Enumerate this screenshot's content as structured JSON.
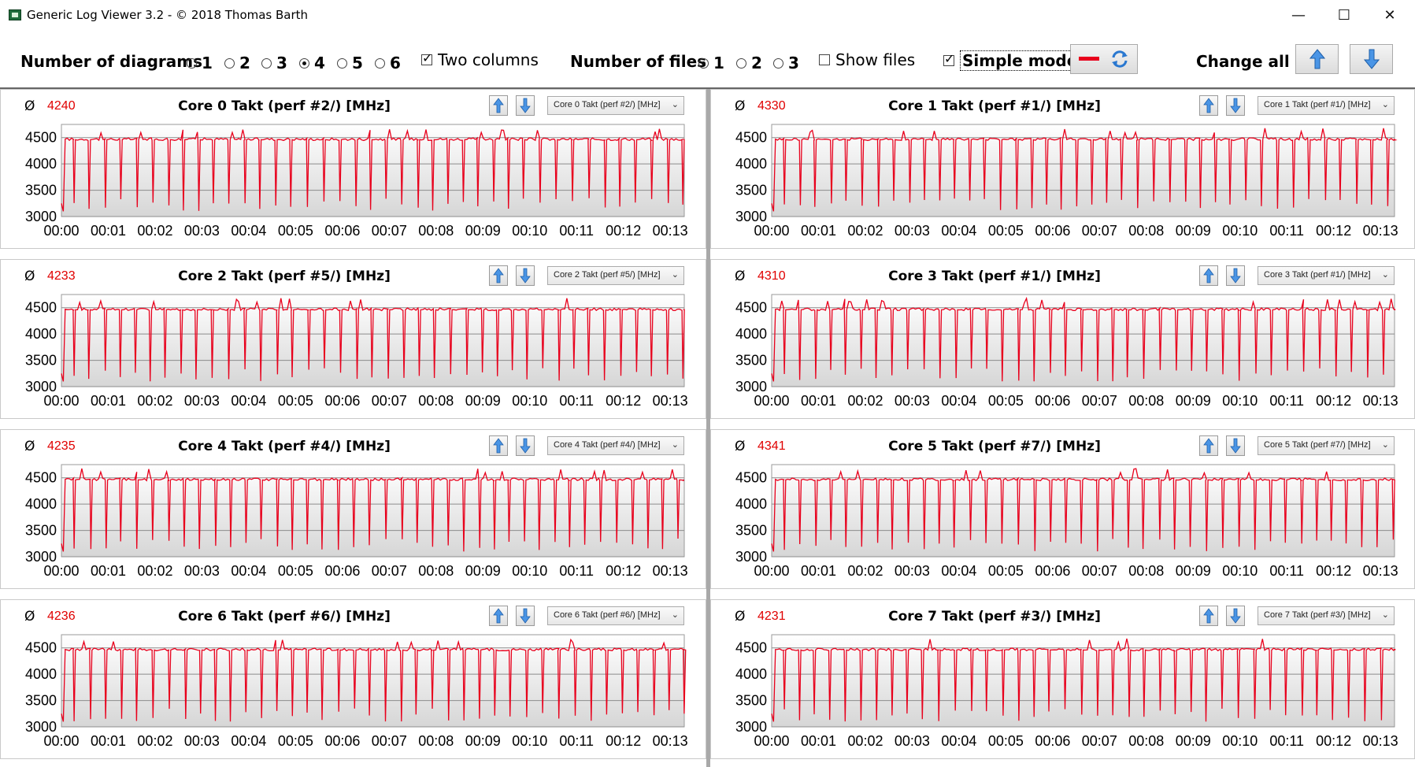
{
  "window": {
    "title": "Generic Log Viewer 3.2 - © 2018 Thomas Barth",
    "minimize": "—",
    "maximize": "☐",
    "close": "✕"
  },
  "toolbar": {
    "diagrams_label": "Number of diagrams",
    "diagram_options": [
      "1",
      "2",
      "3",
      "4",
      "5",
      "6"
    ],
    "diagram_selected": "4",
    "two_columns_label": "Two columns",
    "two_columns_checked": true,
    "files_label": "Number of files",
    "file_options": [
      "1",
      "2",
      "3"
    ],
    "file_selected": "1",
    "show_files_label": "Show files",
    "show_files_checked": false,
    "simple_mode_label": "Simple mode",
    "simple_mode_checked": true,
    "change_all_label": "Change all",
    "line_color": "#e8001c",
    "icons": [
      "red-line-icon",
      "refresh-icon",
      "arrow-up-icon",
      "arrow-down-icon"
    ]
  },
  "panels": [
    {
      "avg_symbol": "Ø",
      "avg": "4240",
      "title": "Core 0 Takt (perf #2/) [MHz]",
      "select": "Core 0 Takt (perf #2/) [MHz]"
    },
    {
      "avg_symbol": "Ø",
      "avg": "4330",
      "title": "Core 1 Takt (perf #1/) [MHz]",
      "select": "Core 1 Takt (perf #1/) [MHz]"
    },
    {
      "avg_symbol": "Ø",
      "avg": "4233",
      "title": "Core 2 Takt (perf #5/) [MHz]",
      "select": "Core 2 Takt (perf #5/) [MHz]"
    },
    {
      "avg_symbol": "Ø",
      "avg": "4310",
      "title": "Core 3 Takt (perf #1/) [MHz]",
      "select": "Core 3 Takt (perf #1/) [MHz]"
    },
    {
      "avg_symbol": "Ø",
      "avg": "4235",
      "title": "Core 4 Takt (perf #4/) [MHz]",
      "select": "Core 4 Takt (perf #4/) [MHz]"
    },
    {
      "avg_symbol": "Ø",
      "avg": "4341",
      "title": "Core 5 Takt (perf #7/) [MHz]",
      "select": "Core 5 Takt (perf #7/) [MHz]"
    },
    {
      "avg_symbol": "Ø",
      "avg": "4236",
      "title": "Core 6 Takt (perf #6/) [MHz]",
      "select": "Core 6 Takt (perf #6/) [MHz]"
    },
    {
      "avg_symbol": "Ø",
      "avg": "4231",
      "title": "Core 7 Takt (perf #3/) [MHz]",
      "select": "Core 7 Takt (perf #3/) [MHz]"
    }
  ],
  "chart_data": {
    "type": "line",
    "y_ticks": [
      "4500",
      "4000",
      "3500",
      "3000"
    ],
    "x_ticks": [
      "00:00",
      "00:01",
      "00:02",
      "00:03",
      "00:04",
      "00:05",
      "00:06",
      "00:07",
      "00:08",
      "00:09",
      "00:10",
      "00:11",
      "00:12",
      "00:13"
    ],
    "ylim": [
      3000,
      4750
    ],
    "xlim_minutes": [
      0,
      13.3
    ],
    "grid": true,
    "series_color": "#e8001c",
    "baseline_mhz": 4470,
    "dip_mhz": 3100,
    "dips_per_minute": 3,
    "peak_mhz": 4680
  }
}
